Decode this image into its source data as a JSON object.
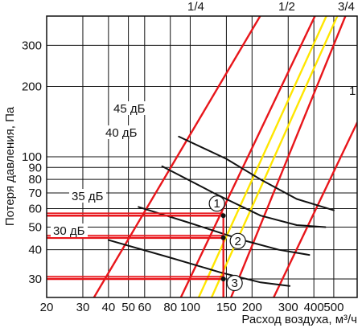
{
  "chart_data": {
    "type": "line",
    "xlabel": "Расход воздуха, м³/ч",
    "ylabel": "Потеря давления, Па",
    "x_scale": "log",
    "y_scale": "log",
    "xlim": [
      20,
      650
    ],
    "ylim": [
      25,
      400
    ],
    "grid": true,
    "x_ticks": [
      {
        "v": 20,
        "label": "20"
      },
      {
        "v": 30,
        "label": "30"
      },
      {
        "v": 40,
        "label": "40"
      },
      {
        "v": 50,
        "label": "50"
      },
      {
        "v": 60,
        "label": "60"
      },
      {
        "v": 80,
        "label": "80"
      },
      {
        "v": 100,
        "label": "100"
      },
      {
        "v": 150,
        "label": "150"
      },
      {
        "v": 200,
        "label": "200"
      },
      {
        "v": 300,
        "label": "300"
      },
      {
        "v": 400,
        "label": "400"
      },
      {
        "v": 500,
        "label": "500"
      }
    ],
    "y_ticks": [
      {
        "v": 30,
        "label": "30"
      },
      {
        "v": 40,
        "label": "40"
      },
      {
        "v": 50,
        "label": "50"
      },
      {
        "v": 60,
        "label": "60"
      },
      {
        "v": 70,
        "label": "70"
      },
      {
        "v": 80,
        "label": "80"
      },
      {
        "v": 90,
        "label": "90"
      },
      {
        "v": 100,
        "label": "100"
      },
      {
        "v": 200,
        "label": "200"
      },
      {
        "v": 300,
        "label": "300"
      }
    ],
    "series": [
      {
        "name": "1/4",
        "color": "#e8161b",
        "points": [
          [
            34,
            25
          ],
          [
            219,
            400
          ]
        ]
      },
      {
        "name": "1/2",
        "color": "#e8161b",
        "points": [
          [
            90,
            25
          ],
          [
            405,
            400
          ]
        ]
      },
      {
        "name": "3/4",
        "color": "#e8161b",
        "points": [
          [
            158,
            25
          ],
          [
            570,
            400
          ]
        ]
      },
      {
        "name": "1",
        "color": "#e8161b",
        "points": [
          [
            255,
            25
          ],
          [
            650,
            140
          ]
        ]
      },
      {
        "name": "",
        "color": "#ffe600",
        "points": [
          [
            110,
            25
          ],
          [
            460,
            400
          ]
        ]
      },
      {
        "name": "",
        "color": "#ffe600",
        "points": [
          [
            127,
            25
          ],
          [
            520,
            400
          ]
        ]
      },
      {
        "name": "45 дБ",
        "color": "#111111",
        "points": [
          [
            88,
            122
          ],
          [
            150,
            98
          ],
          [
            220,
            80
          ],
          [
            330,
            66
          ],
          [
            500,
            59
          ]
        ]
      },
      {
        "name": "40 дБ",
        "color": "#111111",
        "points": [
          [
            73,
            91
          ],
          [
            130,
            70
          ],
          [
            220,
            56
          ],
          [
            330,
            51
          ],
          [
            455,
            50
          ]
        ]
      },
      {
        "name": "35 дБ",
        "color": "#111111",
        "points": [
          [
            56,
            61
          ],
          [
            100,
            52
          ],
          [
            180,
            44
          ],
          [
            270,
            40
          ],
          [
            380,
            38
          ]
        ]
      },
      {
        "name": "30 дБ",
        "color": "#111111",
        "points": [
          [
            40,
            44
          ],
          [
            80,
            37
          ],
          [
            140,
            32
          ],
          [
            220,
            29
          ],
          [
            305,
            28
          ]
        ]
      }
    ],
    "marker_lines": [
      {
        "label": "1",
        "x": 145,
        "y": 56
      },
      {
        "label": "2",
        "x": 145,
        "y": 45
      },
      {
        "label": "3",
        "x": 145,
        "y": 30
      }
    ],
    "annotations": {
      "ratio_1_4": "1/4",
      "ratio_1_2": "1/2",
      "ratio_3_4": "3/4",
      "ratio_1": "1",
      "db45": "45 дБ",
      "db40": "40 дБ",
      "db35": "35 дБ",
      "db30": "30 дБ",
      "point1": "1",
      "point2": "2",
      "point3": "3"
    }
  }
}
